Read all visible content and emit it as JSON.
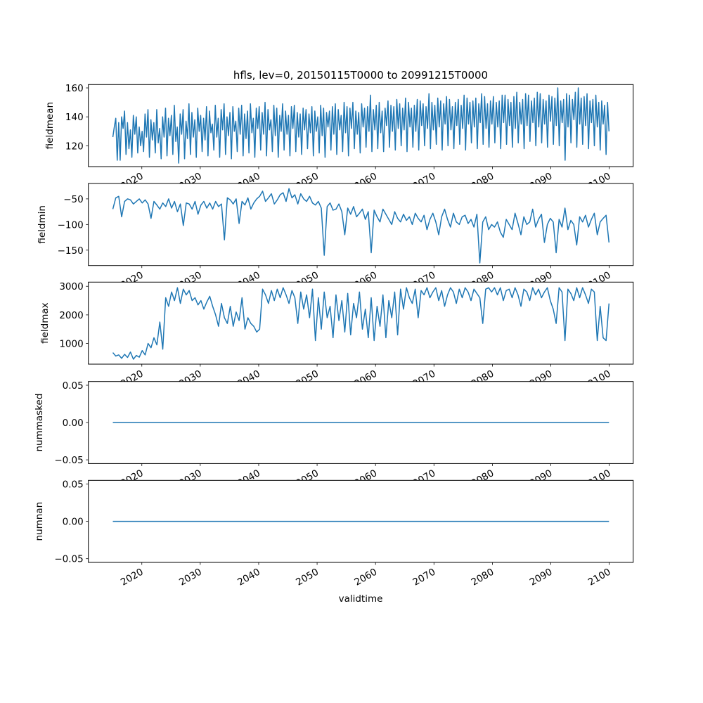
{
  "chart_data": {
    "type": "line",
    "title": "hfls, lev=0, 20150115T0000 to 20991215T0000",
    "xlabel": "validtime",
    "xlim": [
      2010.85,
      2104.1
    ],
    "xticks": [
      2020,
      2030,
      2040,
      2050,
      2060,
      2070,
      2080,
      2090,
      2100
    ],
    "xtick_labels": [
      "2020",
      "2030",
      "2040",
      "2050",
      "2060",
      "2070",
      "2080",
      "2090",
      "2100"
    ],
    "line_color": "#1f77b4",
    "grid": false,
    "panels": [
      {
        "ylabel": "fieldmean",
        "ylim": [
          105.6,
          162.3
        ],
        "yticks": [
          120,
          140,
          160
        ],
        "ytick_labels": [
          "120",
          "140",
          "160"
        ],
        "x_start": 2015.04,
        "x_end": 2099.96,
        "values": [
          126,
          133,
          139,
          110,
          136,
          110,
          140,
          132,
          144,
          114,
          136,
          118,
          131,
          112,
          141,
          128,
          140,
          115,
          133,
          120,
          130,
          116,
          142,
          126,
          145,
          112,
          138,
          124,
          136,
          115,
          145,
          122,
          132,
          111,
          140,
          126,
          146,
          113,
          139,
          127,
          141,
          114,
          148,
          123,
          133,
          108,
          142,
          128,
          145,
          111,
          137,
          125,
          149,
          114,
          143,
          126,
          138,
          112,
          146,
          130,
          141,
          116,
          139,
          124,
          147,
          113,
          144,
          129,
          135,
          117,
          148,
          126,
          139,
          112,
          145,
          131,
          149,
          114,
          140,
          127,
          143,
          111,
          147,
          130,
          137,
          116,
          146,
          128,
          148,
          113,
          142,
          125,
          144,
          115,
          149,
          129,
          139,
          112,
          146,
          132,
          147,
          117,
          143,
          128,
          150,
          113,
          145,
          131,
          138,
          116,
          148,
          127,
          146,
          112,
          141,
          130,
          149,
          117,
          144,
          128,
          141,
          113,
          147,
          132,
          148,
          116,
          143,
          126,
          142,
          114,
          146,
          131,
          145,
          118,
          142,
          129,
          147,
          113,
          144,
          130,
          140,
          115,
          148,
          127,
          146,
          112,
          143,
          133,
          144,
          117,
          147,
          128,
          149,
          114,
          145,
          131,
          141,
          116,
          150,
          129,
          147,
          113,
          146,
          132,
          150,
          118,
          144,
          128,
          143,
          115,
          149,
          133,
          146,
          119,
          147,
          130,
          155,
          116,
          145,
          131,
          148,
          118,
          150,
          129,
          144,
          116,
          146,
          134,
          151,
          119,
          148,
          130,
          147,
          117,
          152,
          132,
          149,
          120,
          146,
          131,
          153,
          116,
          150,
          133,
          146,
          119,
          148,
          130,
          152,
          117,
          151,
          134,
          149,
          120,
          147,
          132,
          156,
          118,
          150,
          131,
          148,
          121,
          153,
          133,
          151,
          117,
          149,
          135,
          154,
          120,
          152,
          131,
          147,
          118,
          150,
          134,
          152,
          121,
          148,
          132,
          155,
          117,
          153,
          135,
          150,
          122,
          151,
          133,
          153,
          118,
          149,
          136,
          156,
          121,
          154,
          132,
          149,
          119,
          151,
          135,
          154,
          122,
          150,
          133,
          151,
          118,
          155,
          136,
          155,
          121,
          152,
          134,
          150,
          119,
          154,
          132,
          157,
          122,
          150,
          135,
          152,
          118,
          156,
          134,
          155,
          123,
          151,
          136,
          153,
          120,
          157,
          133,
          156,
          122,
          152,
          135,
          151,
          119,
          155,
          137,
          154,
          121,
          153,
          134,
          160,
          120,
          151,
          136,
          152,
          110,
          156,
          133,
          155,
          122,
          152,
          138,
          157,
          119,
          160,
          135,
          153,
          121,
          154,
          134,
          156,
          118,
          151,
          136,
          152,
          120,
          155,
          133,
          150,
          117,
          151,
          135,
          148,
          114,
          150,
          130
        ]
      },
      {
        "ylabel": "fieldmin",
        "ylim": [
          -180,
          -20
        ],
        "yticks": [
          -150,
          -100,
          -50
        ],
        "ytick_labels": [
          "−150",
          "−100",
          "−50"
        ],
        "x_start": 2015.04,
        "x_end": 2099.96,
        "values": [
          -70,
          -48,
          -45,
          -85,
          -55,
          -50,
          -52,
          -60,
          -55,
          -50,
          -58,
          -52,
          -60,
          -88,
          -55,
          -62,
          -70,
          -58,
          -65,
          -50,
          -68,
          -55,
          -75,
          -60,
          -102,
          -58,
          -60,
          -70,
          -55,
          -80,
          -62,
          -55,
          -68,
          -58,
          -70,
          -55,
          -65,
          -60,
          -130,
          -48,
          -52,
          -60,
          -50,
          -98,
          -55,
          -62,
          -48,
          -70,
          -58,
          -50,
          -45,
          -35,
          -55,
          -48,
          -40,
          -60,
          -52,
          -42,
          -38,
          -55,
          -30,
          -48,
          -42,
          -60,
          -40,
          -50,
          -55,
          -45,
          -58,
          -62,
          -55,
          -68,
          -160,
          -65,
          -58,
          -72,
          -70,
          -60,
          -75,
          -120,
          -68,
          -80,
          -65,
          -85,
          -78,
          -70,
          -90,
          -75,
          -155,
          -72,
          -85,
          -95,
          -70,
          -80,
          -90,
          -100,
          -75,
          -88,
          -95,
          -80,
          -92,
          -85,
          -100,
          -78,
          -88,
          -95,
          -82,
          -110,
          -90,
          -78,
          -95,
          -120,
          -85,
          -70,
          -90,
          -105,
          -78,
          -95,
          -100,
          -85,
          -82,
          -98,
          -90,
          -105,
          -80,
          -175,
          -95,
          -85,
          -110,
          -100,
          -105,
          -95,
          -115,
          -125,
          -90,
          -100,
          -110,
          -78,
          -98,
          -120,
          -85,
          -100,
          -95,
          -70,
          -105,
          -90,
          -80,
          -135,
          -100,
          -88,
          -95,
          -155,
          -90,
          -105,
          -68,
          -110,
          -92,
          -100,
          -140,
          -85,
          -95,
          -82,
          -105,
          -90,
          -78,
          -120,
          -95,
          -88,
          -82,
          -135
        ]
      },
      {
        "ylabel": "fieldmax",
        "ylim": [
          276,
          3146
        ],
        "yticks": [
          1000,
          2000,
          3000
        ],
        "ytick_labels": [
          "1000",
          "2000",
          "3000"
        ],
        "x_start": 2015.04,
        "x_end": 2099.96,
        "values": [
          680,
          560,
          600,
          480,
          620,
          510,
          700,
          450,
          580,
          520,
          750,
          600,
          1000,
          850,
          1200,
          950,
          1750,
          800,
          2600,
          2300,
          2800,
          2500,
          2950,
          2400,
          2900,
          2700,
          2850,
          2500,
          2600,
          2350,
          2500,
          2200,
          2450,
          2650,
          2300,
          2000,
          1600,
          2400,
          1900,
          1700,
          2300,
          1600,
          2100,
          1800,
          2600,
          1500,
          1900,
          1700,
          1600,
          1400,
          1500,
          2900,
          2700,
          2400,
          2850,
          2500,
          2900,
          2600,
          2950,
          2700,
          2400,
          2850,
          2600,
          1700,
          2800,
          2200,
          2700,
          1900,
          2900,
          1100,
          2600,
          1500,
          2800,
          1900,
          2300,
          1200,
          2700,
          1800,
          2500,
          1400,
          2750,
          1300,
          2400,
          1900,
          2800,
          1500,
          2200,
          1200,
          2600,
          1100,
          2300,
          1600,
          2700,
          1200,
          2500,
          1900,
          2800,
          1300,
          2900,
          2200,
          2950,
          2600,
          2400,
          2900,
          1900,
          2850,
          2700,
          2950,
          2600,
          2800,
          2950,
          2500,
          2850,
          2300,
          2700,
          2950,
          2800,
          2400,
          2900,
          2600,
          2950,
          2800,
          2500,
          2900,
          2750,
          2600,
          1700,
          2900,
          2950,
          2800,
          2950,
          2700,
          2950,
          2500,
          2850,
          2900,
          2600,
          2950,
          2700,
          2300,
          2900,
          2800,
          2500,
          2950,
          2700,
          2900,
          2600,
          2800,
          2950,
          2500,
          2200,
          1700,
          2950,
          2800,
          1100,
          2900,
          2750,
          2500,
          2950,
          2600,
          2950,
          2700,
          2400,
          2900,
          2800,
          1100,
          2300,
          1200,
          1100,
          2400
        ]
      },
      {
        "ylabel": "nummasked",
        "ylim": [
          -0.055,
          0.055
        ],
        "yticks": [
          -0.05,
          0.0,
          0.05
        ],
        "ytick_labels": [
          "−0.05",
          "0.00",
          "0.05"
        ],
        "x_start": 2015.04,
        "x_end": 2099.96,
        "values": [
          0,
          0
        ]
      },
      {
        "ylabel": "numnan",
        "ylim": [
          -0.055,
          0.055
        ],
        "yticks": [
          -0.05,
          0.0,
          0.05
        ],
        "ytick_labels": [
          "−0.05",
          "0.00",
          "0.05"
        ],
        "x_start": 2015.04,
        "x_end": 2099.96,
        "values": [
          0,
          0
        ]
      }
    ]
  }
}
